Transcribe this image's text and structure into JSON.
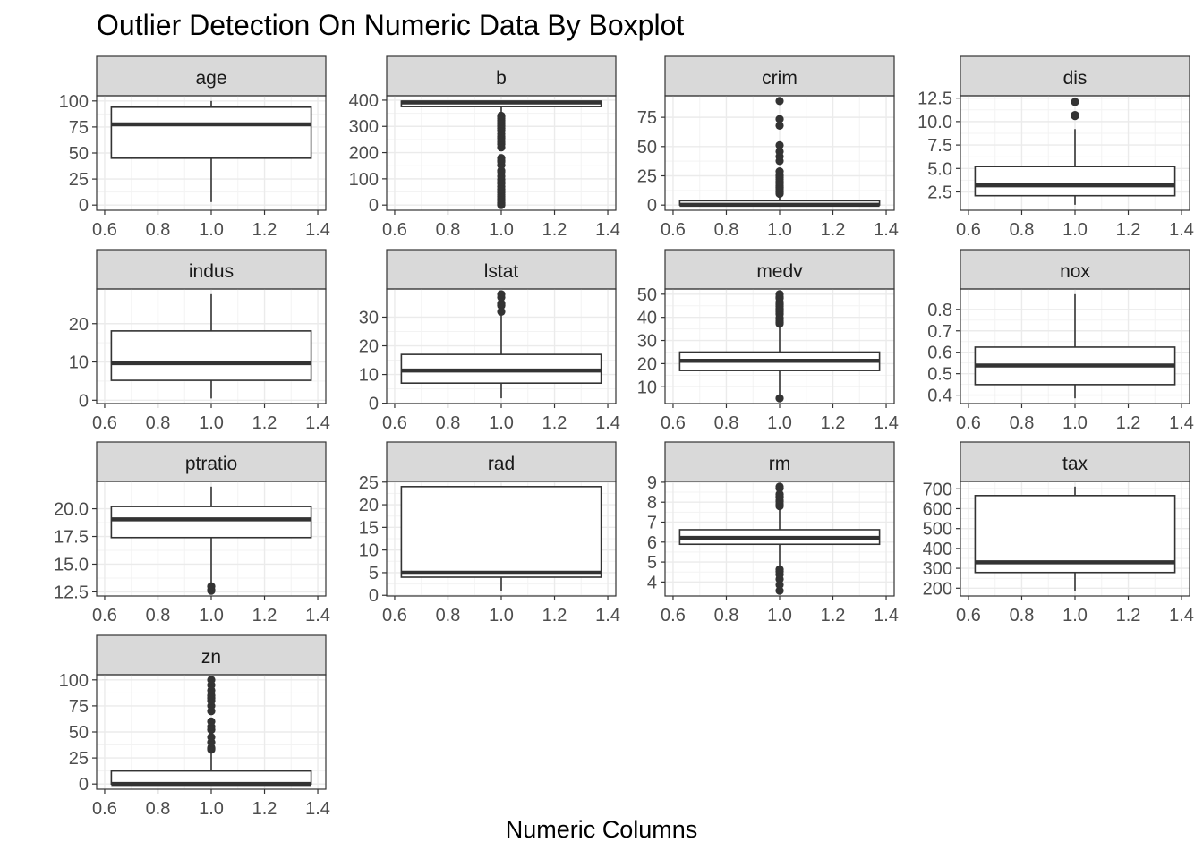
{
  "chart_data": {
    "type": "boxplot",
    "title": "Outlier Detection On Numeric Data By Boxplot",
    "xlabel": "Numeric Columns",
    "ylabel": "",
    "xlim": [
      0.6,
      1.4
    ],
    "x_ticks": [
      "0.6",
      "0.8",
      "1.0",
      "1.2",
      "1.4"
    ],
    "grid": true,
    "colors": {
      "strip_fill": "#d9d9d9",
      "box_line": "#333333",
      "grid": "#ebebeb",
      "panel_border": "#333333"
    },
    "facets": [
      {
        "name": "age",
        "ylim": [
          0,
          100
        ],
        "y_ticks": [
          0,
          25,
          50,
          75,
          100
        ],
        "box": {
          "min": 2.9,
          "q1": 45,
          "median": 77.5,
          "q3": 94,
          "max": 100
        },
        "outliers": []
      },
      {
        "name": "b",
        "ylim": [
          0,
          397
        ],
        "y_ticks": [
          0,
          100,
          200,
          300,
          400
        ],
        "box": {
          "min": 344,
          "q1": 375.4,
          "median": 391.4,
          "q3": 396.2,
          "max": 396.9
        },
        "outliers": [
          0.3,
          3,
          7,
          10,
          16,
          22,
          28,
          34,
          40,
          48,
          55,
          60,
          70,
          82,
          88,
          97,
          110,
          127,
          131,
          152,
          165,
          170,
          179,
          220,
          232,
          240,
          248,
          256,
          262,
          272,
          285,
          292,
          298,
          304,
          310,
          318,
          322,
          330,
          336,
          340
        ]
      },
      {
        "name": "crim",
        "ylim": [
          0,
          89
        ],
        "y_ticks": [
          0,
          25,
          50,
          75
        ],
        "box": {
          "min": 0.006,
          "q1": 0.08,
          "median": 0.26,
          "q3": 3.7,
          "max": 9.0
        },
        "outliers": [
          9.7,
          10.5,
          11.1,
          12.0,
          13.2,
          14.3,
          15.0,
          15.9,
          16.8,
          18.5,
          19.6,
          20.1,
          22.0,
          23.6,
          24.8,
          25.9,
          28.7,
          37.7,
          41.5,
          45.7,
          51.1,
          67.9,
          73.5,
          88.98
        ]
      },
      {
        "name": "dis",
        "ylim": [
          1.1,
          12.2
        ],
        "y_ticks": [
          2.5,
          5.0,
          7.5,
          10.0,
          12.5
        ],
        "box": {
          "min": 1.13,
          "q1": 2.1,
          "median": 3.2,
          "q3": 5.2,
          "max": 9.2
        },
        "outliers": [
          10.6,
          10.7,
          12.1
        ]
      },
      {
        "name": "indus",
        "ylim": [
          0.5,
          27.7
        ],
        "y_ticks": [
          0,
          10,
          20
        ],
        "box": {
          "min": 0.46,
          "q1": 5.2,
          "median": 9.7,
          "q3": 18.1,
          "max": 27.7
        },
        "outliers": []
      },
      {
        "name": "lstat",
        "ylim": [
          1.7,
          38
        ],
        "y_ticks": [
          0,
          10,
          20,
          30
        ],
        "box": {
          "min": 1.73,
          "q1": 7.0,
          "median": 11.4,
          "q3": 17.0,
          "max": 31.0
        },
        "outliers": [
          31.9,
          34.0,
          34.4,
          34.8,
          36.9,
          37.97
        ]
      },
      {
        "name": "medv",
        "ylim": [
          5,
          50
        ],
        "y_ticks": [
          10,
          20,
          30,
          40,
          50
        ],
        "box": {
          "min": 5.6,
          "q1": 17.0,
          "median": 21.2,
          "q3": 25.0,
          "max": 36.5
        },
        "outliers": [
          5.0,
          37.2,
          37.9,
          38.7,
          39.8,
          41.3,
          41.7,
          42.3,
          42.8,
          43.1,
          43.5,
          44.0,
          44.8,
          45.4,
          46.0,
          46.7,
          48.3,
          48.5,
          48.8,
          50.0
        ]
      },
      {
        "name": "nox",
        "ylim": [
          0.385,
          0.871
        ],
        "y_ticks": [
          0.4,
          0.5,
          0.6,
          0.7,
          0.8
        ],
        "box": {
          "min": 0.385,
          "q1": 0.449,
          "median": 0.538,
          "q3": 0.624,
          "max": 0.871
        },
        "outliers": []
      },
      {
        "name": "ptratio",
        "ylim": [
          12.6,
          22
        ],
        "y_ticks": [
          12.5,
          15.0,
          17.5,
          20.0
        ],
        "box": {
          "min": 13.0,
          "q1": 17.4,
          "median": 19.05,
          "q3": 20.2,
          "max": 22.0
        },
        "outliers": [
          12.6,
          12.7,
          13.0
        ]
      },
      {
        "name": "rad",
        "ylim": [
          1,
          24
        ],
        "y_ticks": [
          0,
          5,
          10,
          15,
          20,
          25
        ],
        "box": {
          "min": 1,
          "q1": 4,
          "median": 5,
          "q3": 24,
          "max": 24
        },
        "outliers": []
      },
      {
        "name": "rm",
        "ylim": [
          3.56,
          8.78
        ],
        "y_ticks": [
          4,
          5,
          6,
          7,
          8,
          9
        ],
        "box": {
          "min": 4.8,
          "q1": 5.89,
          "median": 6.21,
          "q3": 6.62,
          "max": 7.7
        },
        "outliers": [
          3.56,
          3.86,
          4.14,
          4.37,
          4.52,
          4.63,
          7.8,
          7.85,
          7.92,
          8.04,
          8.1,
          8.25,
          8.3,
          8.4,
          8.7,
          8.78
        ]
      },
      {
        "name": "tax",
        "ylim": [
          187,
          711
        ],
        "y_ticks": [
          200,
          300,
          400,
          500,
          600,
          700
        ],
        "box": {
          "min": 187,
          "q1": 279,
          "median": 330,
          "q3": 666,
          "max": 711
        },
        "outliers": []
      },
      {
        "name": "zn",
        "ylim": [
          0,
          100
        ],
        "y_ticks": [
          0,
          25,
          50,
          75,
          100
        ],
        "box": {
          "min": 0,
          "q1": 0,
          "median": 0,
          "q3": 12.5,
          "max": 30
        },
        "outliers": [
          33,
          34,
          35,
          40,
          45,
          52,
          55,
          60,
          70,
          75,
          80,
          82.5,
          85,
          90,
          95,
          100
        ]
      }
    ]
  }
}
